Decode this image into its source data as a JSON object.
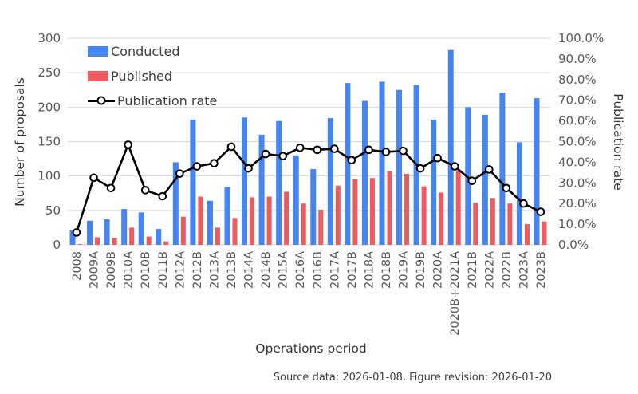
{
  "figure": {
    "source_note": "Source data: 2026-01-08, Figure revision: 2026-01-20",
    "background": "#ffffff"
  },
  "chart_data": {
    "type": "combo (bar + line)",
    "title": "",
    "categories": [
      "2008",
      "2009A",
      "2009B",
      "2010A",
      "2010B",
      "2011B",
      "2012A",
      "2012B",
      "2013A",
      "2013B",
      "2014A",
      "2014B",
      "2015A",
      "2016A",
      "2016B",
      "2017A",
      "2017B",
      "2018A",
      "2018B",
      "2019A",
      "2019B",
      "2020A",
      "2020B+2021A",
      "2021B",
      "2022A",
      "2022B",
      "2023A",
      "2023B"
    ],
    "series": [
      {
        "name": "Conducted",
        "type": "bar",
        "axis": "left",
        "color": "#4484F3",
        "values": [
          22,
          35,
          37,
          52,
          47,
          23,
          120,
          182,
          64,
          84,
          185,
          160,
          180,
          130,
          110,
          184,
          235,
          209,
          237,
          225,
          232,
          182,
          283,
          200,
          189,
          221,
          149,
          213
        ]
      },
      {
        "name": "Published",
        "type": "bar",
        "axis": "left",
        "color": "#EF5A60",
        "values": [
          1,
          11,
          10,
          25,
          12,
          5,
          41,
          70,
          25,
          39,
          69,
          70,
          77,
          60,
          51,
          86,
          96,
          97,
          107,
          103,
          85,
          76,
          108,
          61,
          68,
          60,
          30,
          34
        ]
      },
      {
        "name": "Publication rate",
        "type": "line",
        "axis": "right",
        "color": "#000000",
        "marker": "open-circle",
        "values_percent": [
          6.0,
          32.5,
          27.5,
          48.5,
          26.5,
          23.5,
          34.5,
          38.0,
          39.5,
          47.5,
          37.0,
          44.0,
          43.0,
          47.0,
          46.0,
          46.5,
          41.0,
          46.0,
          45.0,
          45.5,
          37.0,
          42.0,
          38.0,
          31.0,
          36.5,
          27.5,
          20.0,
          16.0
        ]
      }
    ],
    "x_axis": {
      "title": "Operations period",
      "tick_rotation_deg": 90
    },
    "y_axis_left": {
      "title": "Number of proposals",
      "min": 0,
      "max": 300,
      "step": 50,
      "tick_labels": [
        "0",
        "50",
        "100",
        "150",
        "200",
        "250",
        "300"
      ]
    },
    "y_axis_right": {
      "title": "Publication rate",
      "min": 0,
      "max": 100,
      "step": 10,
      "tick_labels": [
        "0.0%",
        "10.0%",
        "20.0%",
        "30.0%",
        "40.0%",
        "50.0%",
        "60.0%",
        "70.0%",
        "80.0%",
        "90.0%",
        "100.0%"
      ]
    },
    "legend": {
      "position": "top-left",
      "entries": [
        "Conducted",
        "Published",
        "Publication rate"
      ]
    },
    "grid": {
      "horizontal": true,
      "color": "#d9d9d9"
    }
  }
}
